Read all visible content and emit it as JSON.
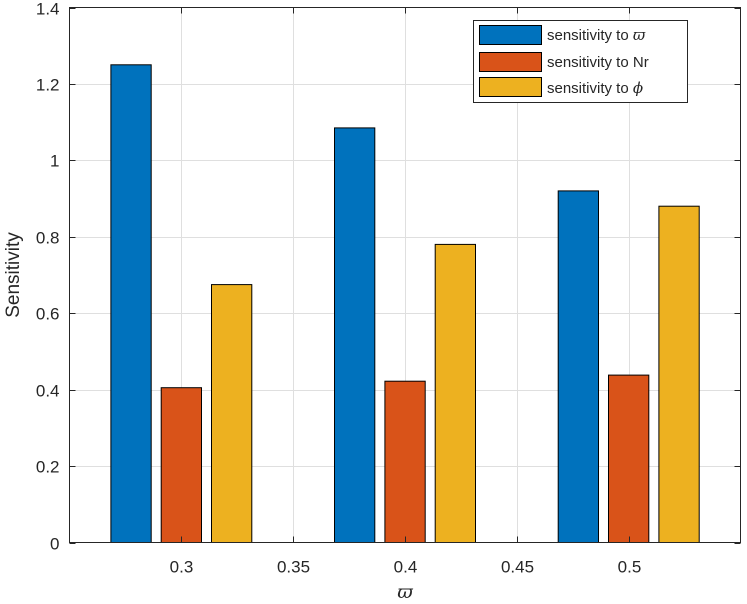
{
  "chart_data": {
    "type": "bar",
    "title": "",
    "xlabel": "ϖ",
    "ylabel": "Sensitivity",
    "x": [
      0.3,
      0.4,
      0.5
    ],
    "xlim": [
      0.25,
      0.55
    ],
    "xticks": [
      0.3,
      0.35,
      0.4,
      0.45,
      0.5
    ],
    "xtick_labels": [
      "0.3",
      "0.35",
      "0.4",
      "0.45",
      "0.5"
    ],
    "ylim": [
      0,
      1.4
    ],
    "yticks": [
      0,
      0.2,
      0.4,
      0.6,
      0.8,
      1.0,
      1.2,
      1.4
    ],
    "ytick_labels": [
      "0",
      "0.2",
      "0.4",
      "0.6",
      "0.8",
      "1",
      "1.2",
      "1.4"
    ],
    "grid": true,
    "legend_position": "top-right",
    "series": [
      {
        "name": "sensitivity to ϖ",
        "legend_prefix": "sensitivity to ",
        "legend_symbol": "ϖ",
        "color": "#0072BD",
        "values": [
          1.25,
          1.085,
          0.92
        ]
      },
      {
        "name": "sensitivity to Nr",
        "legend_prefix": "sensitivity to Nr",
        "legend_symbol": "",
        "color": "#D95319",
        "values": [
          0.405,
          0.422,
          0.438
        ]
      },
      {
        "name": "sensitivity to ϕ",
        "legend_prefix": "sensitivity to ",
        "legend_symbol": "ϕ",
        "color": "#EDB120",
        "values": [
          0.675,
          0.78,
          0.88
        ]
      }
    ]
  }
}
